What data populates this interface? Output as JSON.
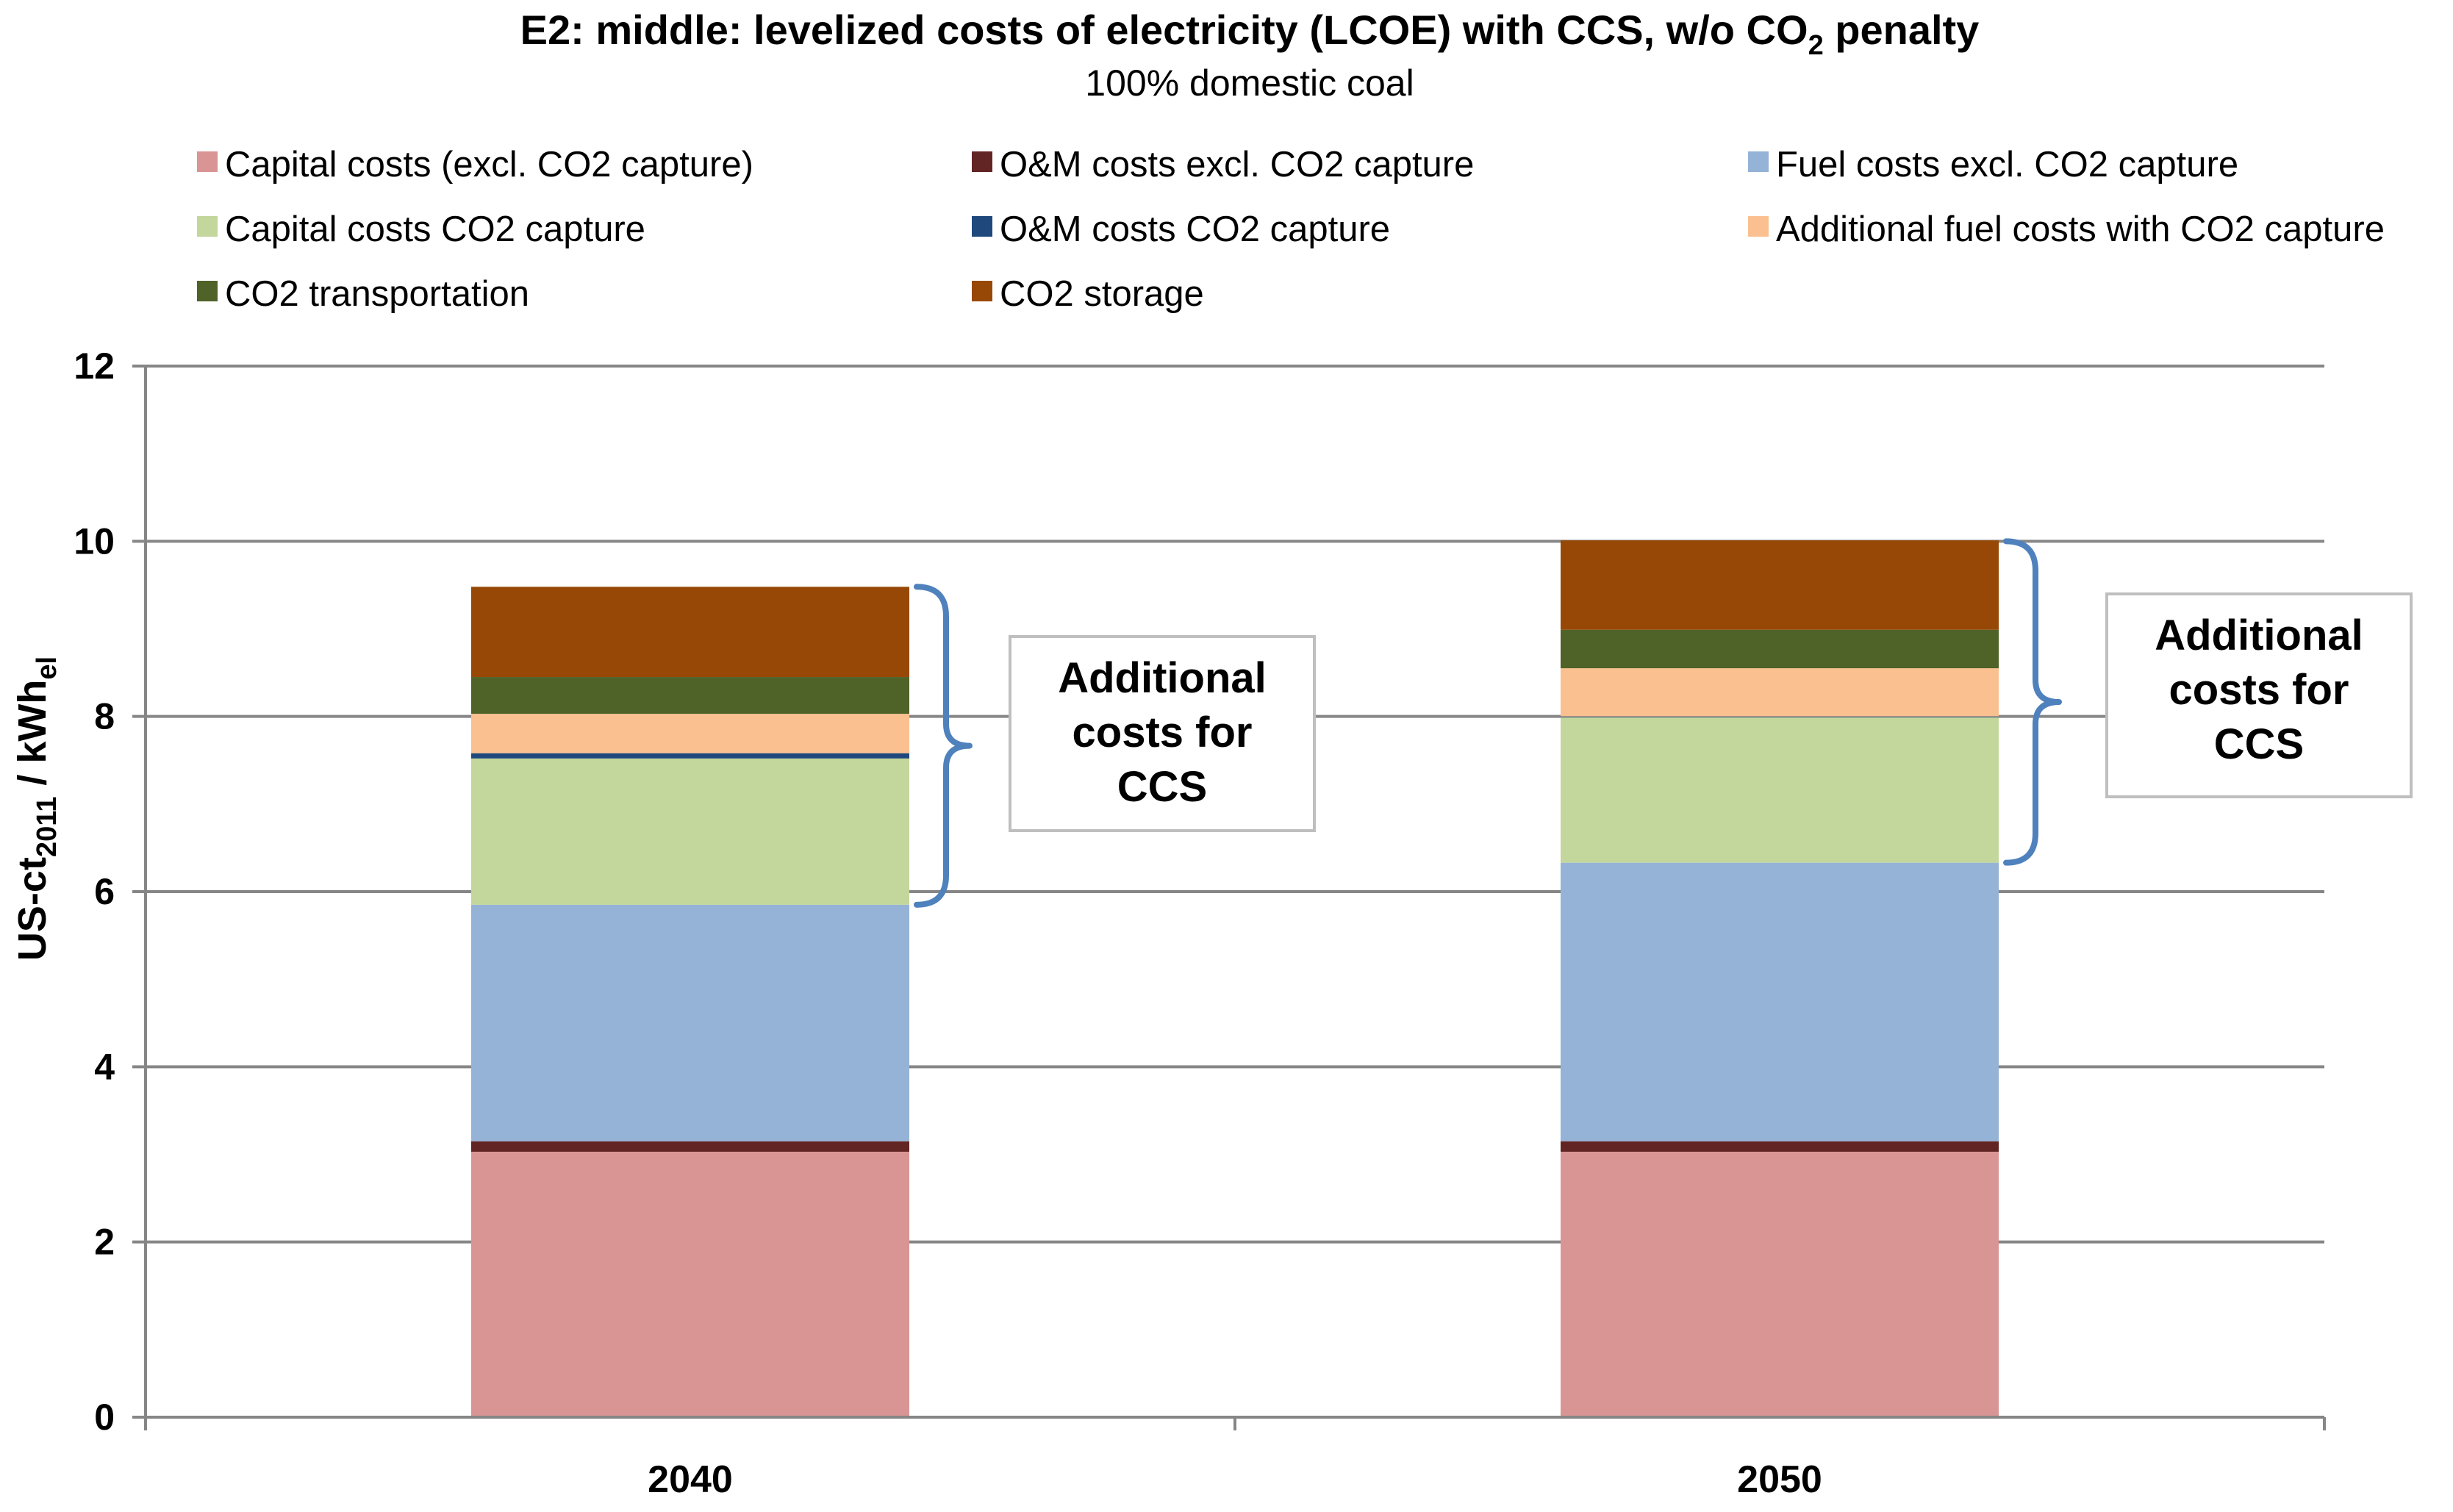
{
  "chart_data": {
    "type": "bar",
    "stacked": true,
    "title": "E2: middle: levelized costs of electricity (LCOE) with CCS, w/o CO",
    "title_subscript": "2",
    "title_suffix": " penalty",
    "subtitle": "100% domestic coal",
    "ylabel": "US-ct",
    "ylabel_sub1": "2011",
    "ylabel_mid": " / kWh",
    "ylabel_sub2": "el",
    "xlabel": "",
    "ylim": [
      0,
      12
    ],
    "yticks": [
      "0",
      "2",
      "4",
      "6",
      "8",
      "10",
      "12"
    ],
    "grid": true,
    "legend_position": "top",
    "categories": [
      "2040",
      "2050"
    ],
    "series": [
      {
        "name": "Capital costs (excl. CO2 capture)",
        "color": "#D99594",
        "values": [
          3.03,
          3.03
        ]
      },
      {
        "name": "O&M costs excl. CO2 capture",
        "color": "#632523",
        "values": [
          0.12,
          0.12
        ]
      },
      {
        "name": "Fuel costs excl. CO2 capture",
        "color": "#95B3D7",
        "values": [
          2.7,
          3.18
        ]
      },
      {
        "name": "Capital costs CO2 capture",
        "color": "#C3D69B",
        "values": [
          1.67,
          1.66
        ]
      },
      {
        "name": "O&M costs CO2 capture",
        "color": "#1F497D",
        "values": [
          0.06,
          0.01
        ]
      },
      {
        "name": "Additional fuel costs with CO2 capture",
        "color": "#FAC090",
        "values": [
          0.45,
          0.55
        ]
      },
      {
        "name": "CO2 transportation",
        "color": "#4F6228",
        "values": [
          0.42,
          0.44
        ]
      },
      {
        "name": "CO2 storage",
        "color": "#974806",
        "values": [
          1.03,
          1.02
        ]
      }
    ],
    "annotations": [
      {
        "category": "2040",
        "lines": [
          "Additional",
          "costs for",
          "CCS"
        ],
        "from": 5.85,
        "to": 9.48
      },
      {
        "category": "2050",
        "lines": [
          "Additional",
          "costs for",
          "CCS"
        ],
        "from": 6.33,
        "to": 10.0
      }
    ],
    "bracket_color": "#4F81BD",
    "grid_color": "#868686"
  }
}
